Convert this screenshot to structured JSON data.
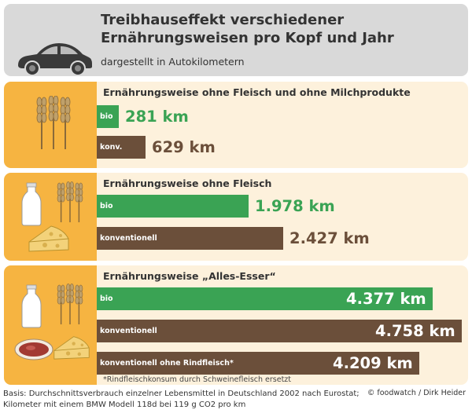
{
  "header": {
    "title": "Treibhauseffekt verschiedener Ernährungsweisen pro Kopf und Jahr",
    "subtitle": "dargestellt in Autokilometern",
    "icon": "car-icon"
  },
  "panels": [
    {
      "title": "Ernährungsweise ohne Fleisch und ohne Milchprodukte",
      "icons": [
        "wheat-icon"
      ],
      "bars": [
        {
          "label": "bio",
          "value_text": "281 km",
          "type": "bio"
        },
        {
          "label": "konv.",
          "value_text": "629 km",
          "type": "conventional"
        }
      ]
    },
    {
      "title": "Ernährungsweise ohne Fleisch",
      "icons": [
        "milk-bottle-icon",
        "wheat-icon",
        "cheese-icon"
      ],
      "bars": [
        {
          "label": "bio",
          "value_text": "1.978 km",
          "type": "bio"
        },
        {
          "label": "konventionell",
          "value_text": "2.427 km",
          "type": "conventional"
        }
      ]
    },
    {
      "title": "Ernährungsweise „Alles-Esser“",
      "icons": [
        "milk-bottle-icon",
        "wheat-icon",
        "meat-icon",
        "cheese-icon"
      ],
      "bars": [
        {
          "label": "bio",
          "value_text": "4.377 km",
          "type": "bio"
        },
        {
          "label": "konventionell",
          "value_text": "4.758 km",
          "type": "conventional"
        },
        {
          "label": "konventionell ohne Rindfleisch*",
          "value_text": "4.209 km",
          "type": "conventional"
        }
      ],
      "footnote": "*Rindfleischkonsum durch Schweinefleisch ersetzt"
    }
  ],
  "footer": {
    "basis_line1": "Basis: Durchschnittsverbrauch einzelner Lebensmittel in Deutschland 2002 nach Eurostat;",
    "basis_line2": "Kilometer mit einem BMW Modell 118d bei 119 g CO2 pro km",
    "credit": "© foodwatch / Dirk Heider"
  },
  "colors": {
    "bio": "#3aa354",
    "conventional": "#6b4f3a",
    "panel_accent": "#f6b441",
    "panel_background": "#fdf1dc",
    "header_background": "#d9d9d9"
  },
  "chart_data": {
    "type": "bar",
    "title": "Treibhauseffekt verschiedener Ernährungsweisen pro Kopf und Jahr",
    "subtitle": "dargestellt in Autokilometern",
    "unit": "km",
    "orientation": "horizontal",
    "groups": [
      {
        "name": "Ernährungsweise ohne Fleisch und ohne Milchprodukte",
        "bars": [
          {
            "label": "bio",
            "value": 281
          },
          {
            "label": "konv.",
            "value": 629
          }
        ]
      },
      {
        "name": "Ernährungsweise ohne Fleisch",
        "bars": [
          {
            "label": "bio",
            "value": 1978
          },
          {
            "label": "konventionell",
            "value": 2427
          }
        ]
      },
      {
        "name": "Ernährungsweise „Alles-Esser“",
        "bars": [
          {
            "label": "bio",
            "value": 4377
          },
          {
            "label": "konventionell",
            "value": 4758
          },
          {
            "label": "konventionell ohne Rindfleisch*",
            "value": 4209
          }
        ]
      }
    ],
    "xlim": [
      0,
      4758
    ]
  }
}
